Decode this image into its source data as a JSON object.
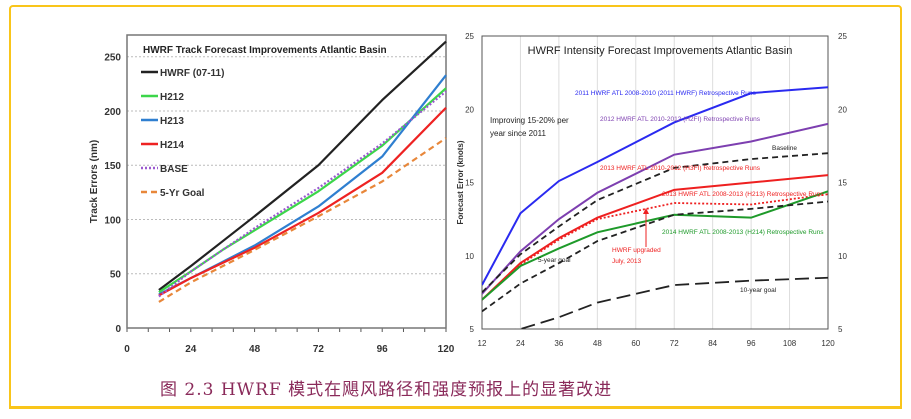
{
  "caption": "图 2.3  HWRF 模式在飓风路径和强度预报上的显著改进",
  "chart_data": [
    {
      "type": "line",
      "title": "HWRF  Track  Forecast  Improvements Atlantic Basin",
      "xlabel": "",
      "ylabel": "Track Errors (nm)",
      "x": [
        12,
        24,
        36,
        48,
        72,
        96,
        120
      ],
      "xlim": [
        0,
        120
      ],
      "ylim": [
        0,
        270
      ],
      "xticks": [
        "0",
        "24",
        "48",
        "72",
        "96",
        "120"
      ],
      "yticks": [
        "0",
        "50",
        "100",
        "150",
        "200",
        "250"
      ],
      "grid": "horizontal dotted",
      "legend": "top-left",
      "series": [
        {
          "name": "HWRF (07-11)",
          "color": "#222222",
          "style": "solid",
          "values": [
            35,
            57,
            80,
            103,
            150,
            210,
            264
          ]
        },
        {
          "name": "H212",
          "color": "#3cd64a",
          "style": "solid",
          "values": [
            33,
            52,
            72,
            90,
            126,
            168,
            221
          ]
        },
        {
          "name": "H213",
          "color": "#2f7fd0",
          "style": "solid",
          "values": [
            31,
            46,
            61,
            76,
            112,
            158,
            233
          ]
        },
        {
          "name": "H214",
          "color": "#ee2222",
          "style": "solid",
          "values": [
            30,
            46,
            60,
            74,
            106,
            143,
            203
          ]
        },
        {
          "name": "BASE",
          "color": "#9b59d0",
          "style": "dotted",
          "values": [
            29,
            52,
            72,
            92,
            129,
            170,
            218
          ]
        },
        {
          "name": "5-Yr Goal",
          "color": "#e8873a",
          "style": "dashed",
          "values": [
            24,
            42,
            57,
            72,
            103,
            135,
            175
          ]
        }
      ]
    },
    {
      "type": "line",
      "title": "HWRF Intensity Forecast Improvements Atlantic Basin",
      "xlabel": "",
      "ylabel": "Forecast Error (knots)",
      "x": [
        12,
        24,
        36,
        48,
        72,
        96,
        120
      ],
      "xlim": [
        12,
        120
      ],
      "ylim": [
        5,
        25
      ],
      "xticks": [
        "12",
        "24",
        "36",
        "48",
        "60",
        "72",
        "84",
        "96",
        "108",
        "120"
      ],
      "yticks": [
        "5",
        "10",
        "15",
        "20",
        "25"
      ],
      "grid": "vertical",
      "annotations": [
        "Improving 15-20% per year since 2011",
        "HWRF upgraded July, 2013"
      ],
      "series": [
        {
          "name": "2011 HWRF  ATL 2008-2010 (2011 HWRF)   Retrospective Runs",
          "color": "#2a2af0",
          "style": "solid",
          "values": [
            8.0,
            12.9,
            15.1,
            16.4,
            19.1,
            21.1,
            21.5
          ]
        },
        {
          "name": "2012 HWRF  ATL 2010-2012 (H2FI) Retrospective Runs",
          "color": "#7d3fb0",
          "style": "solid",
          "values": [
            7.4,
            10.3,
            12.5,
            14.3,
            16.9,
            17.8,
            19.0
          ]
        },
        {
          "name": "Baseline",
          "color": "#222222",
          "style": "dashed",
          "values": [
            7.5,
            10.1,
            12.0,
            13.8,
            16.0,
            16.6,
            17.0
          ]
        },
        {
          "name": "2013 HWRF  ATL 2010-2012 (H3FI) Retrospective Runs",
          "color": "#ee2020",
          "style": "solid",
          "values": [
            7.0,
            9.5,
            11.2,
            12.6,
            14.5,
            15.0,
            15.5
          ]
        },
        {
          "name": "2013 HWRF  ATL 2008-2013 (H213) Retrospective Runs",
          "color": "#ee2020",
          "style": "dotted",
          "values": [
            7.0,
            9.4,
            11.1,
            12.5,
            13.6,
            13.5,
            14.2
          ]
        },
        {
          "name": "2014 HWRF  ATL 2008-2013 (H214) Retrospective Runs",
          "color": "#1e9a2a",
          "style": "solid",
          "values": [
            7.0,
            9.3,
            10.5,
            11.6,
            12.8,
            12.6,
            14.4
          ]
        },
        {
          "name": "5-year goal",
          "color": "#222222",
          "style": "dashed",
          "values": [
            6.2,
            8.1,
            9.5,
            11.0,
            12.8,
            13.2,
            13.7
          ]
        },
        {
          "name": "10-year goal",
          "color": "#222222",
          "style": "longdash",
          "values": [
            4.6,
            5.0,
            5.8,
            6.8,
            8.0,
            8.3,
            8.5
          ]
        }
      ]
    }
  ]
}
